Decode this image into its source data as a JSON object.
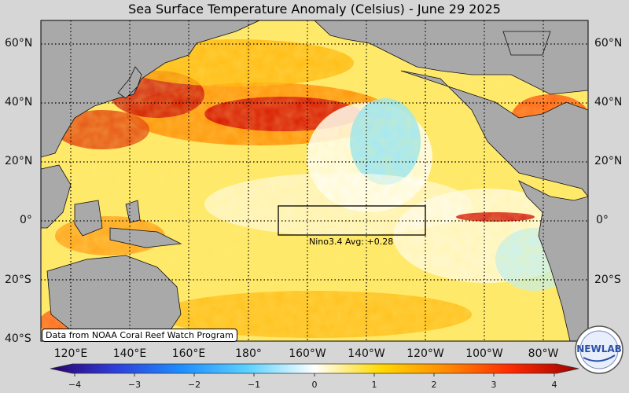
{
  "title": "Sea Surface Temperature Anomaly (Celsius) - June 29 2025",
  "credit": "Data from NOAA Coral Reef Watch Program",
  "nino_box_label": "Nino3.4 Avg: +0.28",
  "logo_text": "NEWLAB",
  "lat_labels": [
    "60°N",
    "40°N",
    "20°N",
    "0°",
    "20°S",
    "40°S"
  ],
  "lon_labels": [
    "120°E",
    "140°E",
    "160°E",
    "180°",
    "160°W",
    "140°W",
    "120°W",
    "100°W",
    "80°W"
  ],
  "colorbar": {
    "ticks": [
      "−4",
      "−3",
      "−2",
      "−1",
      "0",
      "1",
      "2",
      "3",
      "4"
    ],
    "min": -4,
    "max": 4,
    "colors": [
      "#2a006b",
      "#2f3cd8",
      "#1e8fff",
      "#5cd2ff",
      "#ffffff",
      "#ffd900",
      "#ff8a00",
      "#ff2a00",
      "#a00000"
    ]
  },
  "colors": {
    "land": "#a9a9a9",
    "background": "#d6d6d6"
  }
}
